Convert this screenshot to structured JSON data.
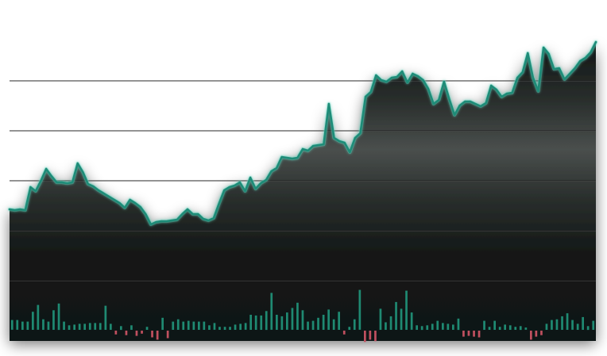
{
  "chart_data": {
    "type": "area",
    "title": "",
    "xlabel": "",
    "ylabel": "",
    "grid": true,
    "legend": "none",
    "colors": {
      "line": "#1e8c78",
      "line_glow": "#5fd3bd",
      "fill_dark": "#121716",
      "fill_mid": "#4a4f4d",
      "grid": "#1f1f1f",
      "volume_up": "#1f8a72",
      "volume_down": "#c0505f",
      "background": "#ffffff"
    },
    "series": [
      {
        "values": [
          264,
          265,
          264,
          265,
          236,
          241,
          228,
          213,
          222,
          230,
          230,
          231,
          230,
          206,
          217,
          232,
          235,
          240,
          244,
          248,
          252,
          256,
          262,
          252,
          256,
          261,
          270,
          283,
          280,
          279,
          279,
          278,
          277,
          270,
          264,
          270,
          270,
          276,
          278,
          275,
          257,
          240,
          236,
          234,
          230,
          241,
          224,
          238,
          231,
          227,
          216,
          212,
          198,
          199,
          200,
          199,
          188,
          190,
          184,
          183,
          182,
          131,
          174,
          178,
          180,
          192,
          174,
          168,
          122,
          116,
          95,
          101,
          103,
          98,
          97,
          90,
          104,
          93,
          96,
          101,
          112,
          131,
          126,
          103,
          125,
          145,
          133,
          128,
          128,
          131,
          134,
          130,
          108,
          113,
          122,
          118,
          117,
          98,
          91,
          67,
          98,
          115,
          60,
          68,
          87,
          86,
          100,
          93,
          86,
          77,
          73,
          66,
          53
        ],
        "ylim": [
          455,
          40
        ],
        "volume": [
          13,
          13,
          11,
          11,
          24,
          33,
          14,
          11,
          26,
          35,
          11,
          6,
          7,
          8,
          8,
          9,
          9,
          9,
          32,
          8,
          -5,
          5,
          -6,
          6,
          -7,
          -4,
          4,
          -9,
          -12,
          16,
          -10,
          11,
          14,
          11,
          12,
          11,
          11,
          11,
          6,
          9,
          4,
          4,
          4,
          7,
          8,
          9,
          20,
          19,
          19,
          25,
          49,
          20,
          18,
          23,
          29,
          36,
          26,
          11,
          12,
          16,
          20,
          27,
          14,
          24,
          -5,
          4,
          14,
          53,
          -15,
          -12,
          -14,
          28,
          10,
          18,
          37,
          28,
          52,
          23,
          6,
          5,
          6,
          8,
          12,
          9,
          8,
          7,
          15,
          -8,
          -7,
          -8,
          -9,
          12,
          4,
          12,
          4,
          7,
          6,
          4,
          5,
          3,
          -12,
          -8,
          -6,
          8,
          13,
          14,
          18,
          22,
          13,
          8,
          17,
          5,
          12
        ],
        "volume_max": 60
      }
    ],
    "gridlines": [
      5
    ]
  }
}
